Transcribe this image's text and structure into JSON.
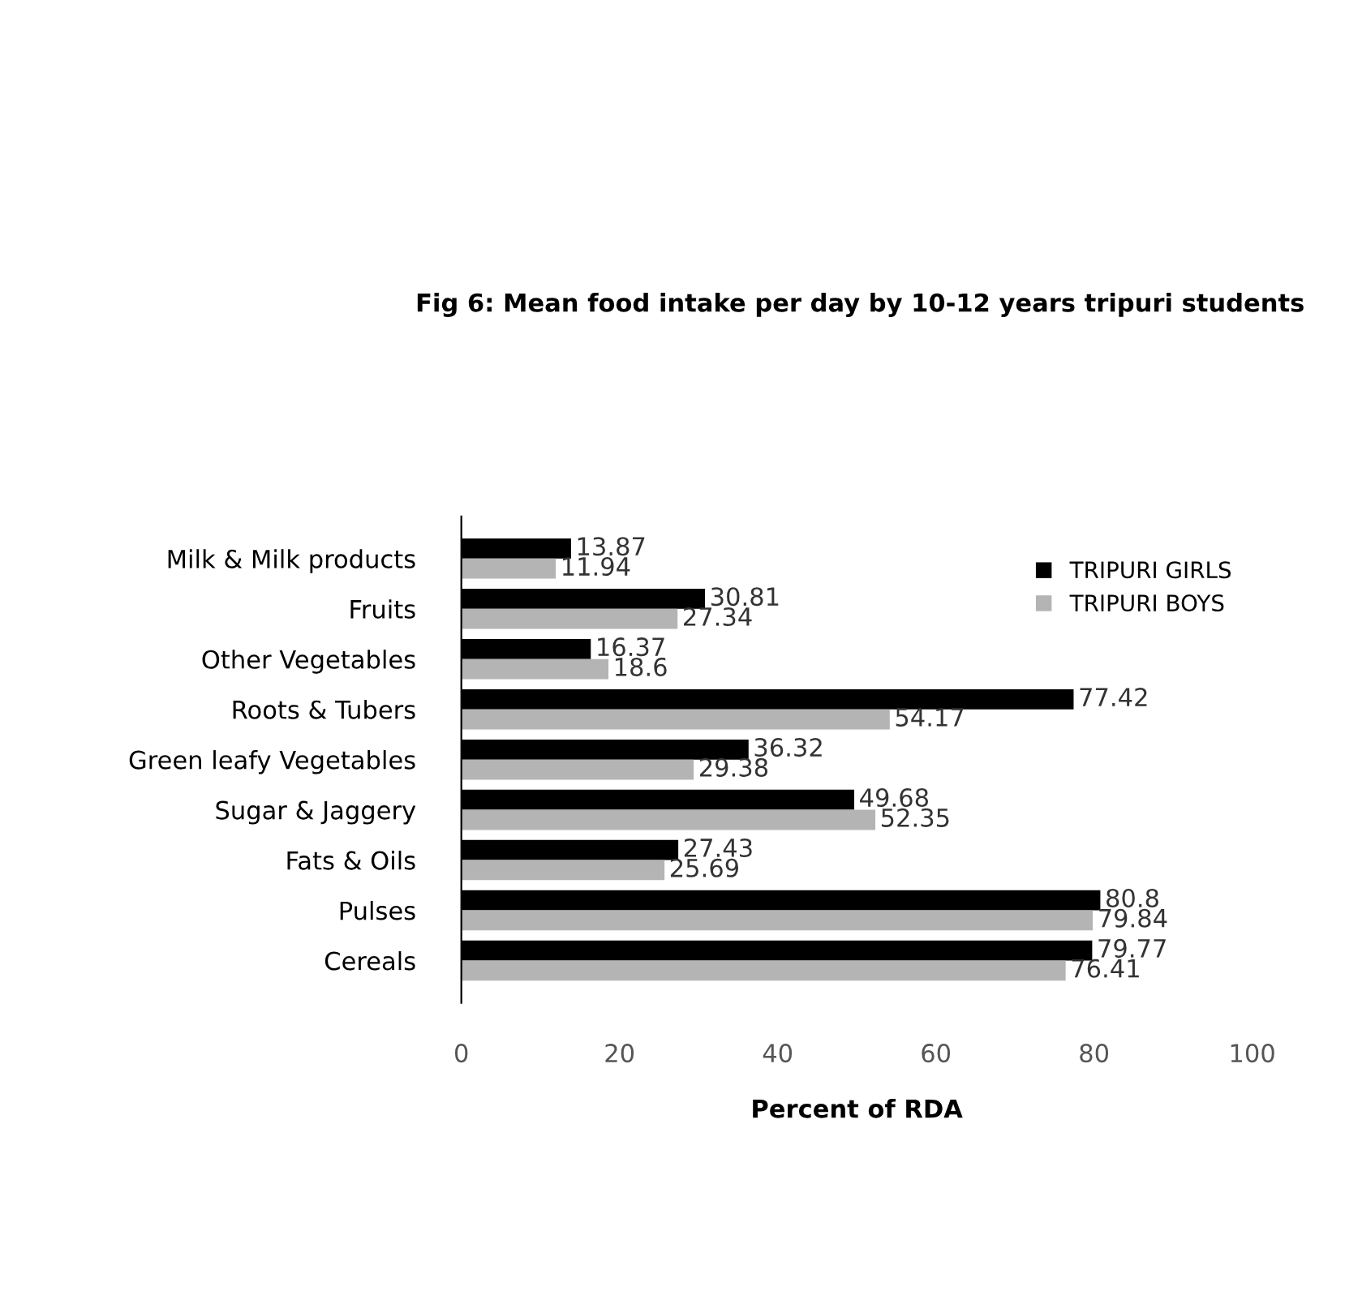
{
  "chart_data": {
    "type": "bar",
    "orientation": "horizontal",
    "title": "Fig 6: Mean food intake per day by 10-12 years tripuri students",
    "xlabel": "Percent of RDA",
    "categories": [
      "Milk & Milk products",
      "Fruits",
      "Other Vegetables",
      "Roots & Tubers",
      "Green leafy Vegetables",
      "Sugar & Jaggery",
      "Fats & Oils",
      "Pulses",
      "Cereals"
    ],
    "series": [
      {
        "name": "TRIPURI GIRLS",
        "color": "#000000",
        "values": [
          13.87,
          30.81,
          16.37,
          77.42,
          36.32,
          49.68,
          27.43,
          80.8,
          79.77
        ]
      },
      {
        "name": "TRIPURI BOYS",
        "color": "#b4b4b4",
        "values": [
          11.94,
          27.34,
          18.6,
          54.17,
          29.38,
          52.35,
          25.69,
          79.84,
          76.41
        ]
      }
    ],
    "xlim": [
      0,
      100
    ],
    "xticks": [
      0,
      20,
      40,
      60,
      80,
      100
    ],
    "data_labels": true,
    "grid": false,
    "legend": "top right"
  }
}
